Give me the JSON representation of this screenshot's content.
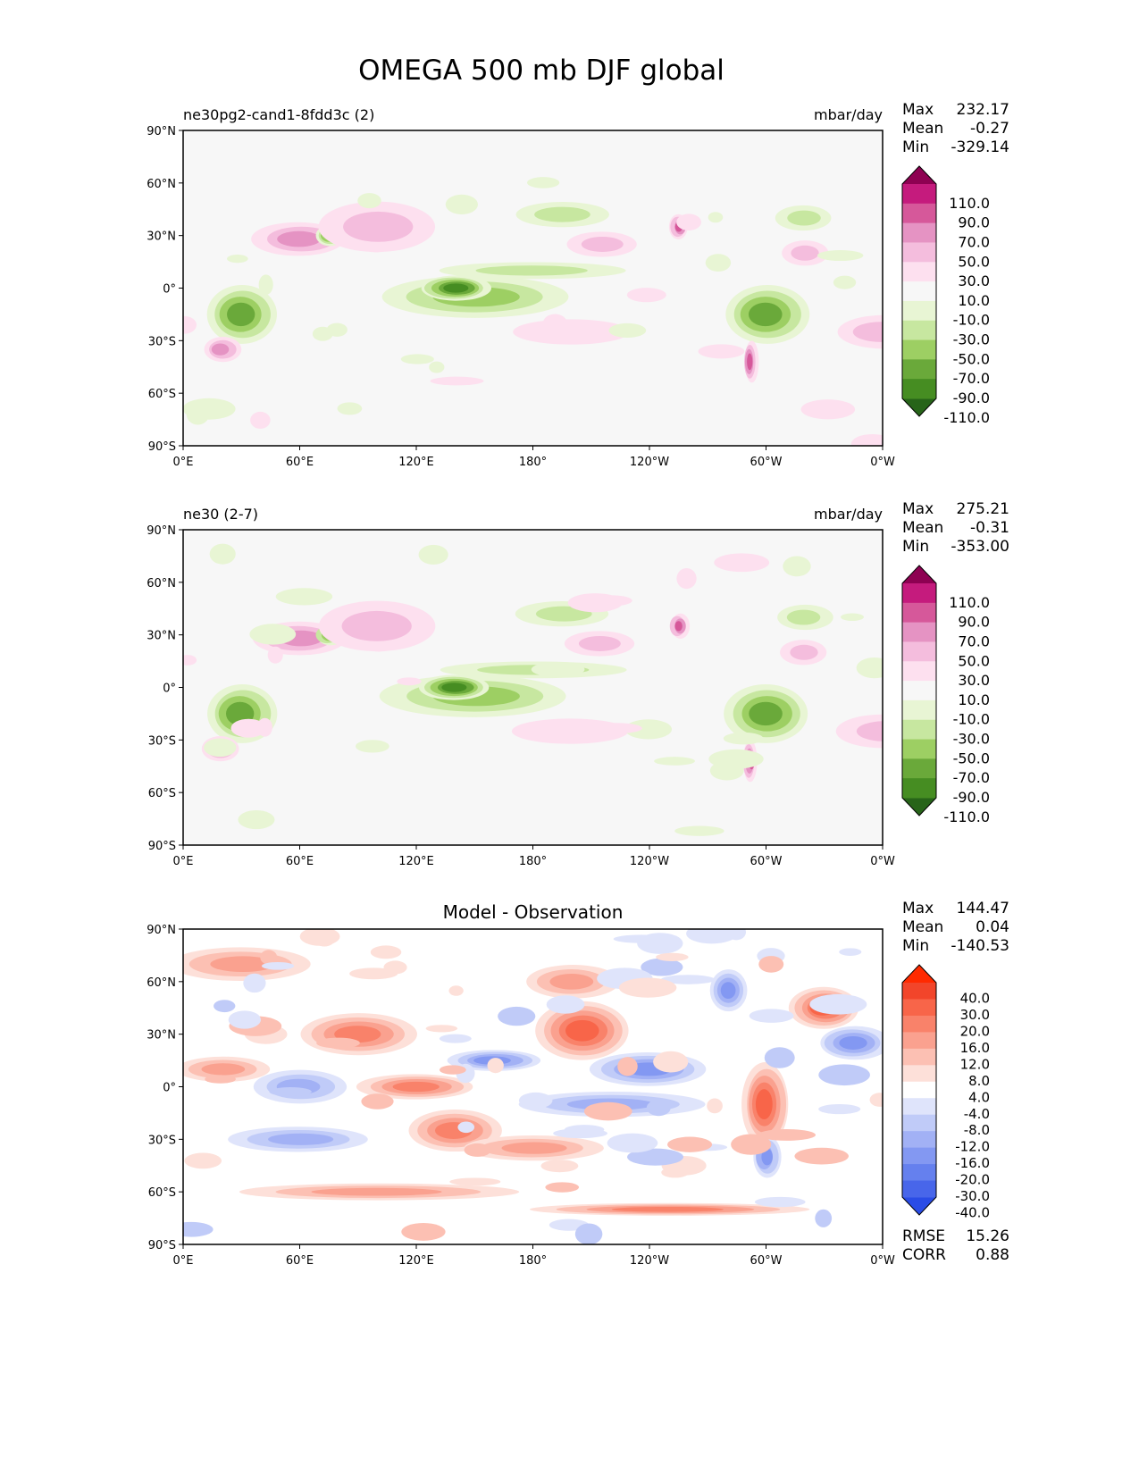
{
  "chart_data": {
    "type": "heatmap",
    "title": "OMEGA 500 mb DJF global",
    "x_ticks": [
      "0°E",
      "60°E",
      "120°E",
      "180°",
      "120°W",
      "60°W",
      "0°W"
    ],
    "y_ticks": [
      "90°N",
      "60°N",
      "30°N",
      "0°",
      "30°S",
      "60°S",
      "90°S"
    ],
    "panels": [
      {
        "left_title": "ne30pg2-cand1-8fdd3c (2)",
        "center_title": "",
        "units": "mbar/day",
        "stats": [
          {
            "label": "Max",
            "value": "232.17"
          },
          {
            "label": "Mean",
            "value": "-0.27"
          },
          {
            "label": "Min",
            "value": "-329.14"
          }
        ],
        "levels": [
          "110.0",
          "90.0",
          "70.0",
          "50.0",
          "30.0",
          "10.0",
          "-10.0",
          "-30.0",
          "-50.0",
          "-70.0",
          "-90.0",
          "-110.0"
        ],
        "colors": [
          "#8e0152",
          "#c51b7d",
          "#d6589a",
          "#e593c3",
          "#f4bddd",
          "#fde0ef",
          "#f7f7f7",
          "#e8f5d4",
          "#c7e7a0",
          "#9dcf63",
          "#6aa93a",
          "#468d22",
          "#276419"
        ]
      },
      {
        "left_title": "ne30 (2-7)",
        "center_title": "",
        "units": "mbar/day",
        "stats": [
          {
            "label": "Max",
            "value": "275.21"
          },
          {
            "label": "Mean",
            "value": "-0.31"
          },
          {
            "label": "Min",
            "value": "-353.00"
          }
        ],
        "levels": [
          "110.0",
          "90.0",
          "70.0",
          "50.0",
          "30.0",
          "10.0",
          "-10.0",
          "-30.0",
          "-50.0",
          "-70.0",
          "-90.0",
          "-110.0"
        ],
        "colors": [
          "#8e0152",
          "#c51b7d",
          "#d6589a",
          "#e593c3",
          "#f4bddd",
          "#fde0ef",
          "#f7f7f7",
          "#e8f5d4",
          "#c7e7a0",
          "#9dcf63",
          "#6aa93a",
          "#468d22",
          "#276419"
        ]
      },
      {
        "left_title": "",
        "center_title": "Model - Observation",
        "units": "",
        "stats": [
          {
            "label": "Max",
            "value": "144.47"
          },
          {
            "label": "Mean",
            "value": "0.04"
          },
          {
            "label": "Min",
            "value": "-140.53"
          }
        ],
        "levels": [
          "40.0",
          "30.0",
          "20.0",
          "16.0",
          "12.0",
          "8.0",
          "4.0",
          "-4.0",
          "-8.0",
          "-12.0",
          "-16.0",
          "-20.0",
          "-30.0",
          "-40.0"
        ],
        "colors": [
          "#ff2a00",
          "#f2452a",
          "#f86549",
          "#f9826a",
          "#faa18f",
          "#fcc0b3",
          "#fde0d9",
          "#ffffff",
          "#dfe4fb",
          "#c0cbf8",
          "#a2b1f5",
          "#8398f2",
          "#6580ee",
          "#4866ea",
          "#2a4ce6"
        ],
        "footer": [
          {
            "label": "RMSE",
            "value": "15.26"
          },
          {
            "label": "CORR",
            "value": "0.88"
          }
        ]
      }
    ]
  }
}
